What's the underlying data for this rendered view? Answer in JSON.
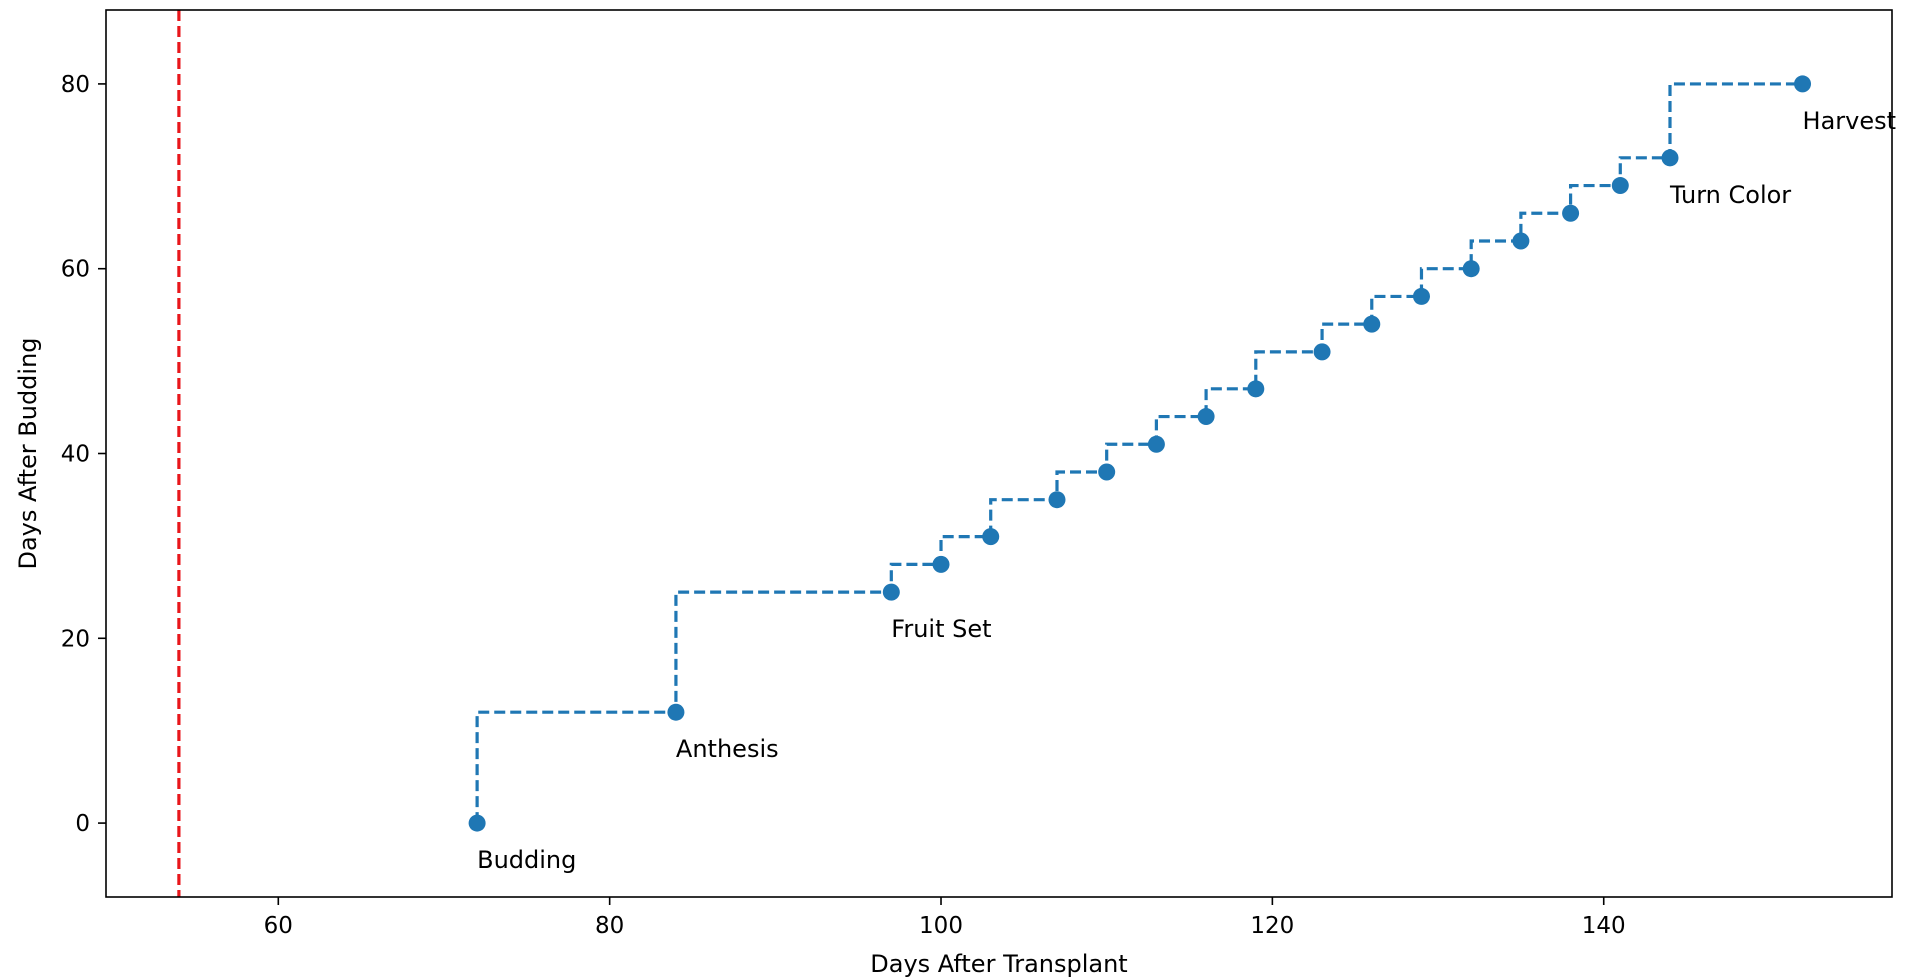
{
  "chart_data": {
    "type": "line",
    "xlabel": "Days After Transplant",
    "ylabel": "Days After Budding",
    "xlim": [
      49.6,
      157.4
    ],
    "ylim": [
      -8,
      88
    ],
    "xticks": [
      60,
      80,
      100,
      120,
      140
    ],
    "yticks": [
      0,
      20,
      40,
      60,
      80
    ],
    "grid": false,
    "legend": "none",
    "series": [
      {
        "style": "steps-pre dashed with circle markers",
        "color": "#1f77b4",
        "x": [
          72,
          84,
          97,
          100,
          103,
          107,
          110,
          113,
          116,
          119,
          123,
          126,
          129,
          132,
          135,
          138,
          141,
          144,
          152
        ],
        "y": [
          0,
          12,
          25,
          28,
          31,
          35,
          38,
          41,
          44,
          47,
          51,
          54,
          57,
          60,
          63,
          66,
          69,
          72,
          80
        ]
      }
    ],
    "vline": {
      "x": 54,
      "color": "#e8161b",
      "style": "dashed"
    },
    "annotations": [
      {
        "text": "Budding",
        "x": 72,
        "y": 0
      },
      {
        "text": "Anthesis",
        "x": 84,
        "y": 12
      },
      {
        "text": "Fruit Set",
        "x": 97,
        "y": 25
      },
      {
        "text": "Turn Color",
        "x": 144,
        "y": 72
      },
      {
        "text": "Harvest",
        "x": 152,
        "y": 80
      }
    ]
  }
}
